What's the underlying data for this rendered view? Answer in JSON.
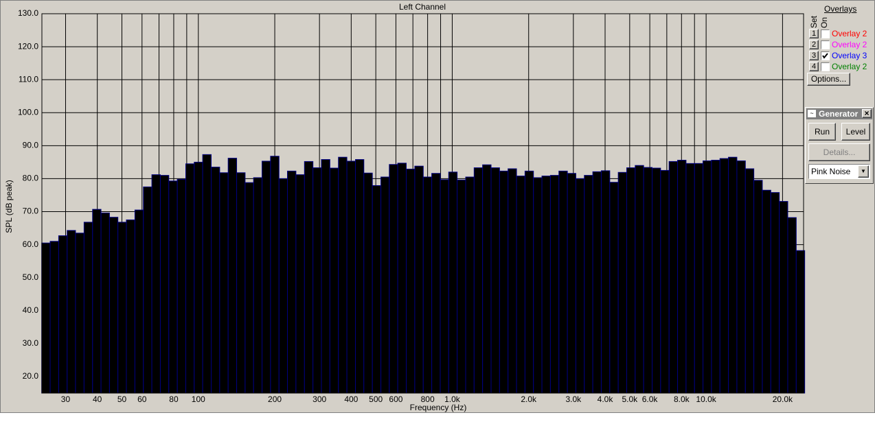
{
  "chart_data": {
    "type": "bar",
    "title": "Left Channel",
    "x_label": "Frequency (Hz)",
    "y_label": "SPL (dB peak)",
    "x_scale": "log",
    "grid": true,
    "x": [
      25.1,
      27.1,
      29.3,
      31.6,
      34.1,
      36.9,
      39.8,
      43.0,
      46.4,
      50.1,
      54.1,
      58.5,
      63.1,
      68.2,
      73.6,
      79.5,
      85.9,
      92.7,
      100.1,
      108.1,
      116.8,
      126.1,
      136.2,
      147.1,
      158.8,
      171.5,
      185.2,
      200,
      216,
      233,
      252,
      272,
      294,
      317,
      343,
      370,
      400,
      432,
      466,
      504,
      544,
      587,
      634,
      685,
      740,
      799,
      863,
      932,
      1006,
      1087,
      1174,
      1267,
      1369,
      1478,
      1596,
      1724,
      1862,
      2010,
      2171,
      2344,
      2532,
      2734,
      2953,
      3189,
      3443,
      3718,
      4016,
      4337,
      4683,
      5057,
      5461,
      5898,
      6369,
      6878,
      7428,
      8021,
      8662,
      9354,
      10101,
      10908,
      11780,
      12721,
      13737,
      14835,
      16020,
      17300,
      18683,
      20176,
      21788,
      23529
    ],
    "series": [
      {
        "color": "#000000",
        "edge_color": "#000080",
        "values": [
          60.5,
          61,
          62.7,
          64.3,
          63.5,
          66.8,
          70.7,
          69.6,
          68.3,
          66.8,
          67.5,
          70.5,
          77.5,
          81.2,
          81,
          79.3,
          79.8,
          84.5,
          85,
          87.3,
          83.5,
          81.8,
          86.2,
          81.8,
          78.8,
          80.3,
          85.3,
          86.8,
          80,
          82.3,
          81.2,
          85.2,
          83.3,
          85.8,
          83.2,
          86.5,
          85.3,
          85.8,
          81.7,
          77.9,
          80.5,
          84.3,
          84.7,
          82.9,
          83.8,
          80.5,
          81.6,
          79.7,
          82,
          79.6,
          80.5,
          83.3,
          84.2,
          83.3,
          82.3,
          83,
          80.8,
          82.3,
          80.3,
          80.8,
          81,
          82.3,
          81.6,
          80,
          81,
          82.1,
          82.4,
          78.9,
          81.9,
          83.3,
          84,
          83.4,
          83.2,
          82.5,
          85.2,
          85.6,
          84.6,
          84.6,
          85.4,
          85.6,
          86.1,
          86.5,
          85.4,
          83,
          79.5,
          76.5,
          75.8,
          73.1,
          68.2,
          58.2
        ]
      }
    ],
    "xlim": [
      24.2,
      24200
    ],
    "ylim": [
      15,
      130
    ],
    "xticks": [
      30,
      40,
      50,
      60,
      {
        "value": 70,
        "label": null
      },
      80,
      {
        "value": 90,
        "label": null
      },
      100,
      200,
      300,
      400,
      500,
      600,
      {
        "value": 700,
        "label": null
      },
      800,
      {
        "value": 900,
        "label": null
      },
      {
        "value": 1000,
        "label": "1.0k"
      },
      {
        "value": 2000,
        "label": "2.0k"
      },
      {
        "value": 3000,
        "label": "3.0k"
      },
      {
        "value": 4000,
        "label": "4.0k"
      },
      {
        "value": 5000,
        "label": "5.0k"
      },
      {
        "value": 6000,
        "label": "6.0k"
      },
      {
        "value": 7000,
        "label": null
      },
      {
        "value": 8000,
        "label": "8.0k"
      },
      {
        "value": 9000,
        "label": null
      },
      {
        "value": 10000,
        "label": "10.0k"
      },
      {
        "value": 20000,
        "label": "20.0k"
      }
    ],
    "yticks": [
      {
        "value": 20,
        "label": "20.0"
      },
      {
        "value": 30,
        "label": "30.0"
      },
      {
        "value": 40,
        "label": "40.0"
      },
      {
        "value": 50,
        "label": "50.0"
      },
      {
        "value": 60,
        "label": "60.0"
      },
      {
        "value": 70,
        "label": "70.0"
      },
      {
        "value": 80,
        "label": "80.0"
      },
      {
        "value": 90,
        "label": "90.0"
      },
      {
        "value": 100,
        "label": "100.0"
      },
      {
        "value": 110,
        "label": "110.0"
      },
      {
        "value": 120,
        "label": "120.0"
      },
      {
        "value": 130,
        "label": "130.0"
      }
    ]
  },
  "overlays": {
    "title": "Overlays",
    "set_label": "Set",
    "on_label": "On",
    "items": [
      {
        "set": "1",
        "name": "Overlay 2",
        "color": "#ff0000",
        "checked": false
      },
      {
        "set": "2",
        "name": "Overlay 2",
        "color": "#ff00ff",
        "checked": false
      },
      {
        "set": "3",
        "name": "Overlay 3",
        "color": "#0000ff",
        "checked": true
      },
      {
        "set": "4",
        "name": "Overlay 2",
        "color": "#008000",
        "checked": false
      }
    ],
    "options_button": "Options..."
  },
  "generator": {
    "title": "Generator",
    "run_button": "Run",
    "level_button": "Level",
    "details_button": "Details...",
    "signal": "Pink Noise"
  }
}
